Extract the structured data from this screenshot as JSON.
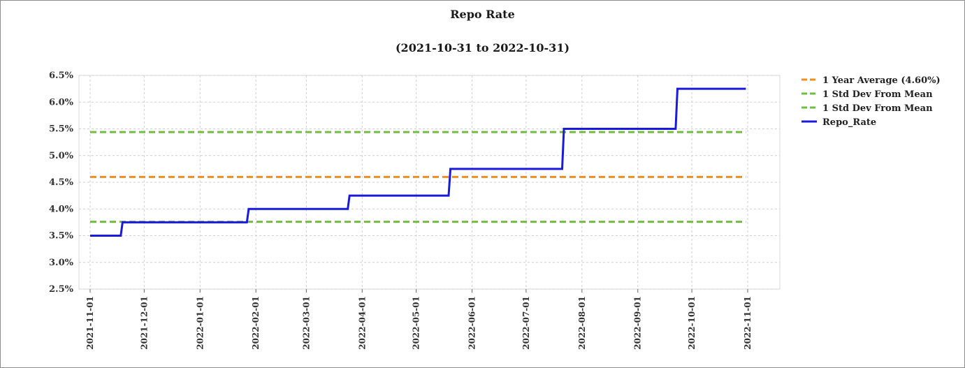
{
  "chart_data": {
    "type": "line",
    "title": "Repo Rate",
    "subtitle": "(2021-10-31 to 2022-10-31)",
    "xlabel": "",
    "ylabel": "",
    "ylim": [
      0.025,
      0.065
    ],
    "y_ticks": [
      0.025,
      0.03,
      0.035,
      0.04,
      0.045,
      0.05,
      0.055,
      0.06,
      0.065
    ],
    "y_tick_labels": [
      "2.5%",
      "3.0%",
      "3.5%",
      "4.0%",
      "4.5%",
      "5.0%",
      "5.5%",
      "6.0%",
      "6.5%"
    ],
    "x_ticks": [
      "2021-11-01",
      "2021-12-01",
      "2022-01-01",
      "2022-02-01",
      "2022-03-01",
      "2022-04-01",
      "2022-05-01",
      "2022-06-01",
      "2022-07-01",
      "2022-08-01",
      "2022-09-01",
      "2022-10-01",
      "2022-11-01"
    ],
    "grid": true,
    "legend_position": "right",
    "series": [
      {
        "name": "1 Year Average (4.60%)",
        "style": "dashed",
        "color": "#f28e1c",
        "points": [
          [
            "2021-11-01",
            0.046
          ],
          [
            "2022-10-31",
            0.046
          ]
        ]
      },
      {
        "name": "1 Std Dev From Mean",
        "style": "dashed",
        "color": "#6fbf3c",
        "points": [
          [
            "2021-11-01",
            0.0544
          ],
          [
            "2022-10-31",
            0.0544
          ]
        ]
      },
      {
        "name": "1 Std Dev From Mean",
        "style": "dashed",
        "color": "#6fbf3c",
        "points": [
          [
            "2021-11-01",
            0.0376
          ],
          [
            "2022-10-31",
            0.0376
          ]
        ]
      },
      {
        "name": "Repo_Rate",
        "style": "solid",
        "color": "#1a1adb",
        "points": [
          [
            "2021-11-01",
            0.035
          ],
          [
            "2021-11-18",
            0.035
          ],
          [
            "2021-11-19",
            0.0375
          ],
          [
            "2022-01-27",
            0.0375
          ],
          [
            "2022-01-28",
            0.04
          ],
          [
            "2022-03-24",
            0.04
          ],
          [
            "2022-03-25",
            0.0425
          ],
          [
            "2022-05-19",
            0.0425
          ],
          [
            "2022-05-20",
            0.0475
          ],
          [
            "2022-07-21",
            0.0475
          ],
          [
            "2022-07-22",
            0.055
          ],
          [
            "2022-09-22",
            0.055
          ],
          [
            "2022-09-23",
            0.0625
          ],
          [
            "2022-10-31",
            0.0625
          ]
        ]
      }
    ]
  }
}
